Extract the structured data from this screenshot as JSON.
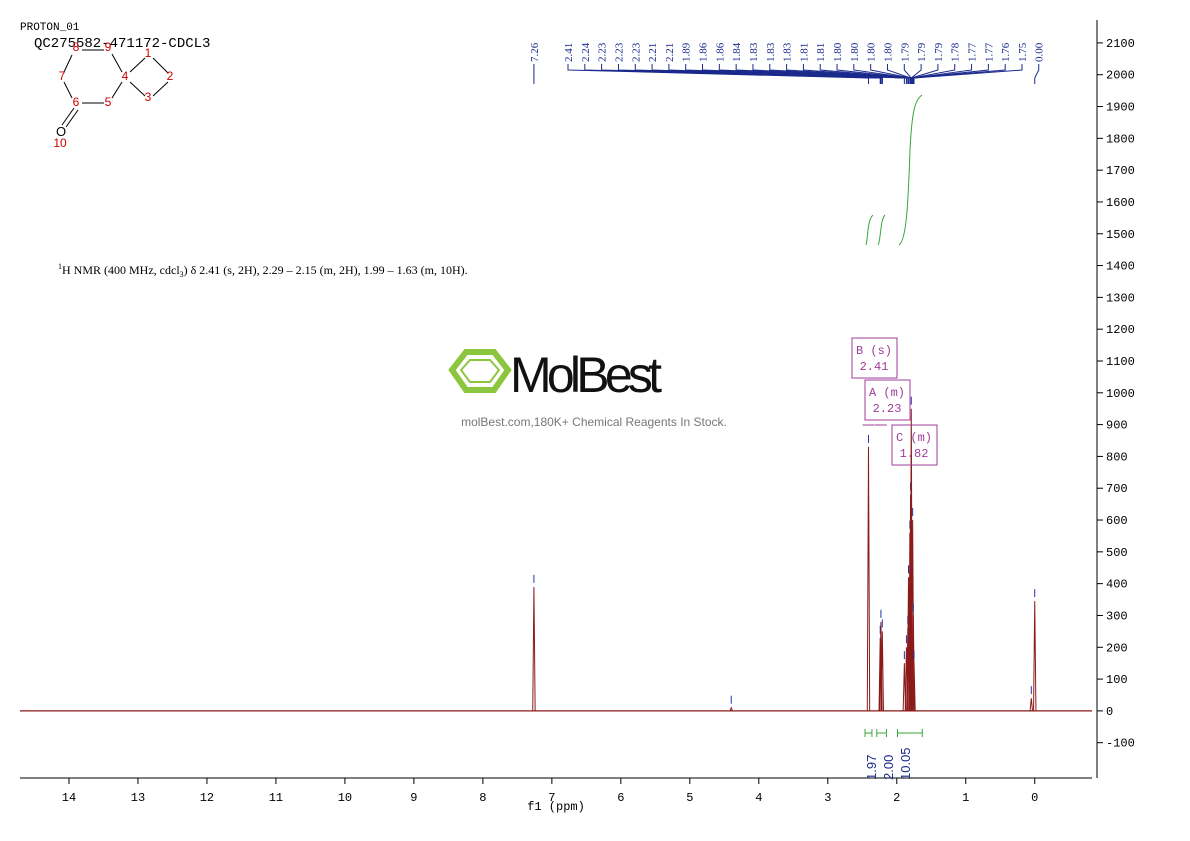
{
  "chart_data": {
    "type": "nmr",
    "title": "PROTON_01",
    "subtitle": "QC275582-471172-CDCL3",
    "description": [
      "1",
      "H NMR (400 MHz, cdcl",
      "3",
      ") δ 2.41 (s, 2H), 2.29 – 2.15 (m, 2H), 1.99 – 1.63 (m, 10H)."
    ],
    "watermark": {
      "brand": "MolBest",
      "tagline": "molBest.com,180K+ Chemical Reagents In Stock."
    },
    "molecule": {
      "atom_labels": [
        "1",
        "2",
        "3",
        "4",
        "5",
        "6",
        "7",
        "8",
        "9",
        "10"
      ],
      "oxygen": "O"
    },
    "x_label": "f1 (ppm)",
    "xlim": [
      14.71,
      -0.83
    ],
    "xticks": [
      14,
      13,
      12,
      11,
      10,
      9,
      8,
      7,
      6,
      5,
      4,
      3,
      2,
      1,
      0
    ],
    "ylim": [
      -211,
      2172
    ],
    "yticks": [
      -100,
      0,
      100,
      200,
      300,
      400,
      500,
      600,
      700,
      800,
      900,
      1000,
      1100,
      1200,
      1300,
      1400,
      1500,
      1600,
      1700,
      1800,
      1900,
      2000,
      2100
    ],
    "color": "#8b1a1a",
    "peaks": {
      "x": [
        7.26,
        4.4,
        2.41,
        2.24,
        2.23,
        2.21,
        1.89,
        1.86,
        1.84,
        1.83,
        1.81,
        1.8,
        1.79,
        1.77,
        1.76,
        1.75,
        0.05,
        0.0
      ],
      "values": [
        390,
        10,
        830,
        230,
        280,
        250,
        150,
        200,
        260,
        420,
        560,
        680,
        950,
        600,
        300,
        150,
        40,
        345
      ]
    },
    "peak_picks": [
      7.26,
      2.41,
      2.24,
      2.23,
      2.23,
      2.23,
      2.21,
      2.21,
      1.89,
      1.86,
      1.86,
      1.84,
      1.83,
      1.83,
      1.83,
      1.81,
      1.81,
      {
        "value": 1.8,
        "label": "1.80"
      },
      {
        "value": 1.8,
        "label": "1.80"
      },
      {
        "value": 1.8,
        "label": "1.80"
      },
      {
        "value": 1.8,
        "label": "1.80"
      },
      1.79,
      1.79,
      1.79,
      1.78,
      1.77,
      1.77,
      1.76,
      1.75,
      {
        "value": 0,
        "label": "0.00"
      }
    ],
    "integrals": [
      {
        "from": 2.46,
        "to": 2.36,
        "value": 1.97
      },
      {
        "from": 2.29,
        "to": 2.15,
        "value": {
          "value": 2,
          "label": "2.00"
        }
      },
      {
        "from": 1.99,
        "to": 1.63,
        "value": 10.05
      }
    ],
    "multiplets": [
      {
        "name": "B (s)",
        "shift": 2.41
      },
      {
        "name": "A (m)",
        "shift": 2.23
      },
      {
        "name": "C (m)",
        "shift": 1.82
      }
    ]
  }
}
